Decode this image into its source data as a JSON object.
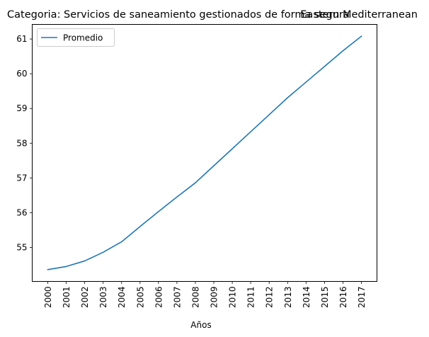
{
  "chart_data": {
    "type": "line",
    "title_left": "Categoria: Servicios de saneamiento gestionados de forma segura",
    "title_right": "Eastern Mediterranean",
    "xlabel": "Años",
    "ylabel": "",
    "x": [
      "2000",
      "2001",
      "2002",
      "2003",
      "2004",
      "2005",
      "2006",
      "2007",
      "2008",
      "2009",
      "2010",
      "2011",
      "2012",
      "2013",
      "2014",
      "2015",
      "2016",
      "2017"
    ],
    "series": [
      {
        "name": "Promedio",
        "color": "#1f77b4",
        "values": [
          54.36,
          54.45,
          54.61,
          54.86,
          55.16,
          55.6,
          56.03,
          56.45,
          56.86,
          57.35,
          57.84,
          58.33,
          58.82,
          59.31,
          59.76,
          60.21,
          60.66,
          61.08
        ]
      }
    ],
    "yticks": [
      55,
      56,
      57,
      58,
      59,
      60,
      61
    ],
    "ylim": [
      54.02,
      61.42
    ],
    "grid": false,
    "legend_position": "upper-left"
  }
}
